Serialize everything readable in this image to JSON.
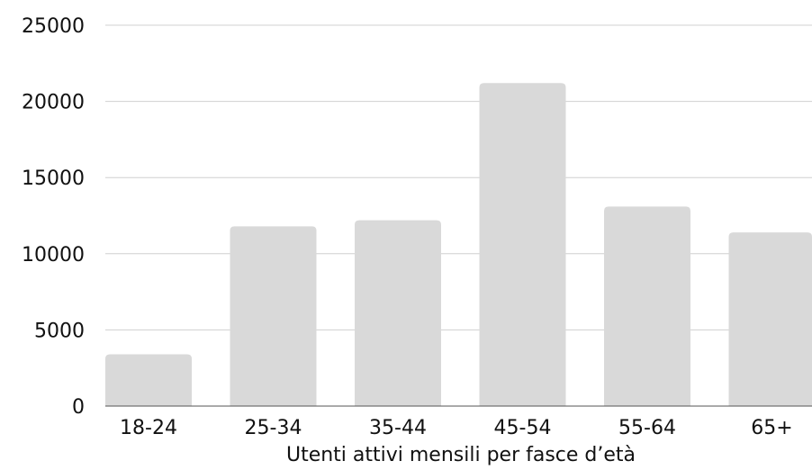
{
  "chart_data": {
    "type": "bar",
    "title": "",
    "xlabel": "Utenti attivi mensili per fasce d’età",
    "ylabel": "",
    "categories": [
      "18-24",
      "25-34",
      "35-44",
      "45-54",
      "55-64",
      "65+"
    ],
    "values": [
      3400,
      11800,
      12200,
      21200,
      13100,
      11400
    ],
    "ylim": [
      0,
      25000
    ],
    "yticks": [
      0,
      5000,
      10000,
      15000,
      20000,
      25000
    ],
    "ytick_labels": [
      "0",
      "5000",
      "10000",
      "15000",
      "20000",
      "25000"
    ],
    "grid": true,
    "legend": "none"
  },
  "colors": {
    "bar": "#d9d9d9",
    "grid": "#d0d0d0",
    "baseline": "#555555",
    "text": "#111111",
    "background": "#ffffff"
  }
}
